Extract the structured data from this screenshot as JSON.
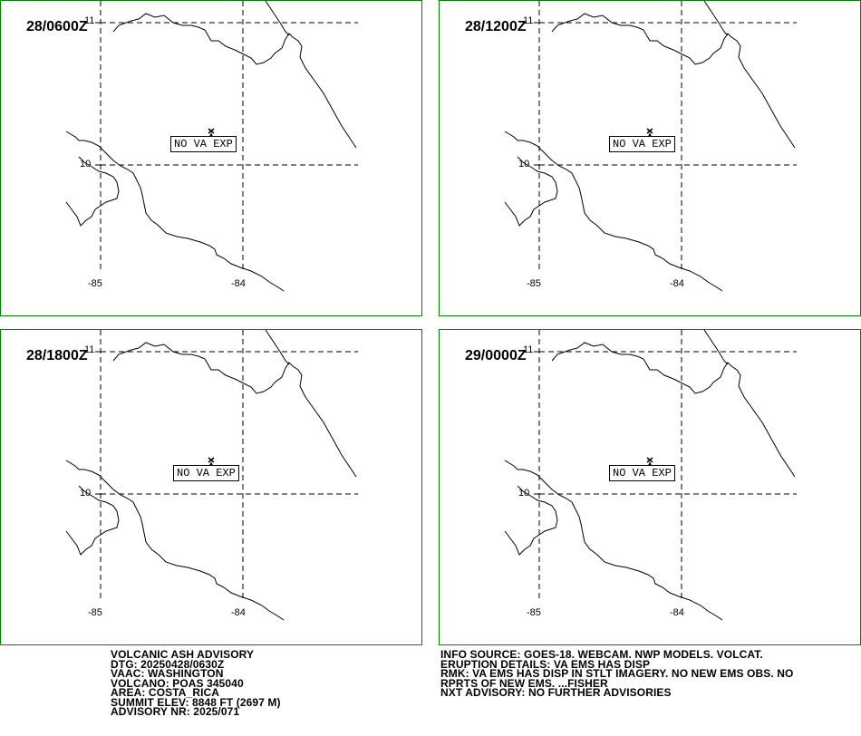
{
  "panels": [
    {
      "time": "28/0600Z",
      "status": "NO VA EXP"
    },
    {
      "time": "28/1200Z",
      "status": "NO VA EXP"
    },
    {
      "time": "28/1800Z",
      "status": "NO VA EXP"
    },
    {
      "time": "29/0000Z",
      "status": "NO VA EXP"
    }
  ],
  "axes": {
    "lat_labels": [
      "11",
      "10"
    ],
    "lon_labels": [
      "-85",
      "-84"
    ]
  },
  "volcano_icon": "volcano-symbol-icon",
  "colors": {
    "panel_border": "#008000",
    "map_lines": "#000000"
  },
  "advisory_left": [
    "VOLCANIC ASH ADVISORY",
    "DTG: 20250428/0630Z",
    "VAAC: WASHINGTON",
    "VOLCANO: POAS 345040",
    "AREA: COSTA_RICA",
    "SUMMIT ELEV: 8848 FT (2697 M)",
    "ADVISORY NR: 2025/071"
  ],
  "advisory_right": [
    "INFO SOURCE: GOES-18. WEBCAM. NWP MODELS. VOLCAT.",
    "ERUPTION DETAILS: VA EMS HAS DISP",
    "RMK: VA EMS HAS DISP IN STLT IMAGERY. NO NEW EMS OBS. NO",
    "RPRTS OF NEW EMS. ...FISHER",
    "NXT ADVISORY: NO FURTHER ADVISORIES"
  ]
}
